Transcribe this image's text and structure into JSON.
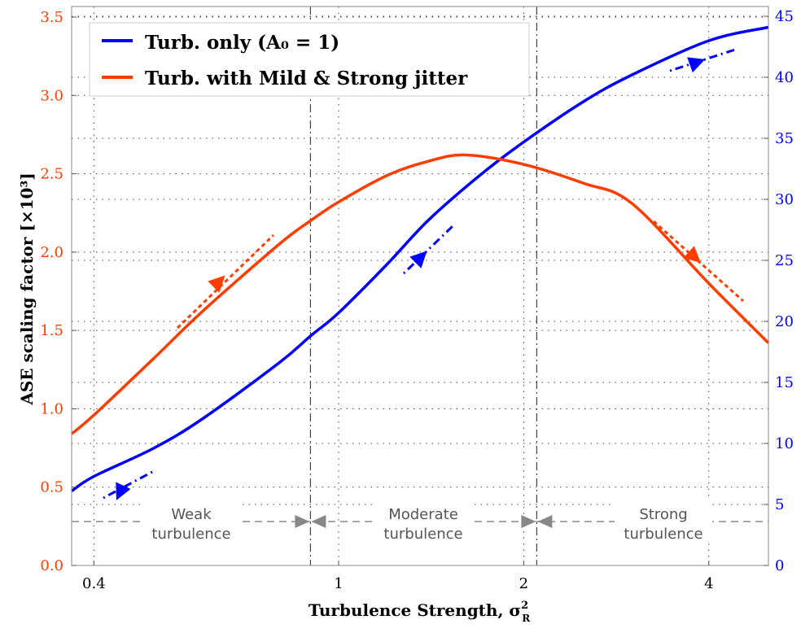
{
  "chart_data": {
    "type": "line",
    "xlabel": "Turbulence Strength, σ",
    "xlabel_sup": "2",
    "xlabel_sub": "R",
    "ylabel": "ASE scaling factor  [×10³]",
    "x_scale": "log",
    "xlim": [
      0.368,
      5
    ],
    "x_ticks": [
      0.4,
      1,
      2,
      4
    ],
    "x_tick_labels": [
      "0.4",
      "1",
      "2",
      "4"
    ],
    "ylim_left": [
      0,
      3.5
    ],
    "y_left_ticks": [
      "0.0",
      "0.5",
      "1.0",
      "1.5",
      "2.0",
      "2.5",
      "3.0",
      "3.5"
    ],
    "ylim_right": [
      0,
      45
    ],
    "y_right_ticks": [
      "0",
      "5",
      "10",
      "15",
      "20",
      "25",
      "30",
      "35",
      "40",
      "45"
    ],
    "left_axis_color": "#ff3d00",
    "right_axis_color": "#0000ff",
    "grid": true,
    "legend_placement": "top-left",
    "series": [
      {
        "name": "Turb. only (A₀ = 1)",
        "axis": "right",
        "color": "#0000ff",
        "x": [
          0.368,
          0.4,
          0.5,
          0.6,
          0.8,
          0.9,
          1,
          1.2,
          1.4,
          1.7,
          2,
          2.5,
          3,
          4,
          5
        ],
        "y": [
          6.1,
          7.3,
          9.6,
          12.0,
          16.6,
          18.8,
          20.7,
          24.7,
          28.3,
          32.0,
          34.7,
          38.0,
          40.2,
          43.0,
          44.1
        ]
      },
      {
        "name": "Turb. with Mild & Strong jitter",
        "axis": "left",
        "color": "#ff3d00",
        "x": [
          0.368,
          0.4,
          0.5,
          0.6,
          0.8,
          0.9,
          1,
          1.2,
          1.4,
          1.61,
          2,
          2.5,
          3,
          4,
          5
        ],
        "y": [
          0.84,
          0.96,
          1.32,
          1.62,
          2.05,
          2.2,
          2.32,
          2.49,
          2.58,
          2.62,
          2.56,
          2.44,
          2.31,
          1.8,
          1.42
        ]
      }
    ],
    "region_boundaries": [
      0.9,
      2.1
    ],
    "regions": [
      {
        "line1": "Weak",
        "line2": "turbulence"
      },
      {
        "line1": "Moderate",
        "line2": "turbulence"
      },
      {
        "line1": "Strong",
        "line2": "turbulence"
      }
    ]
  }
}
